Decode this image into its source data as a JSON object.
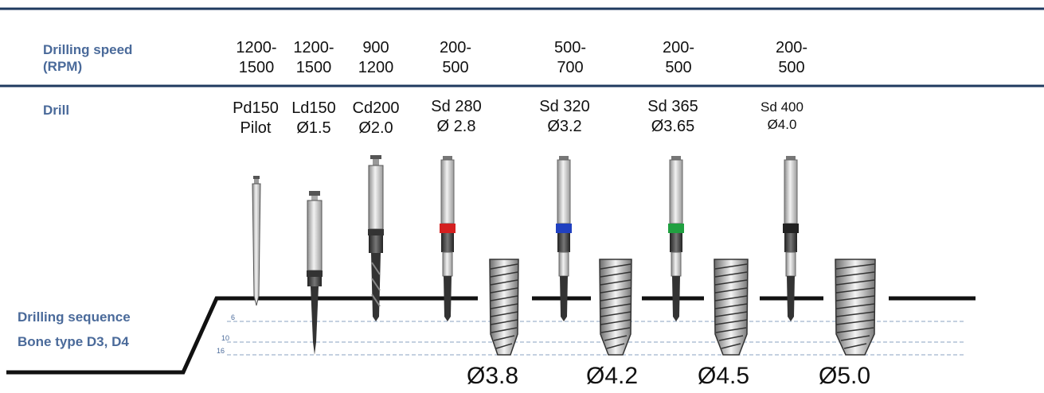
{
  "labels": {
    "drilling_speed": [
      "Drilling speed",
      "(RPM)"
    ],
    "drill": "Drill",
    "sequence": [
      "Drilling sequence",
      "Bone type D3, D4"
    ]
  },
  "speeds": [
    [
      "1200-",
      "1500"
    ],
    [
      "1200-",
      "1500"
    ],
    [
      "900",
      "1200"
    ],
    [
      "200-",
      "500"
    ],
    [
      "500-",
      "700"
    ],
    [
      "200-",
      "500"
    ],
    [
      "200-",
      "500"
    ]
  ],
  "drills": [
    [
      "Pd150",
      "Pilot"
    ],
    [
      "Ld150",
      "Ø1.5"
    ],
    [
      "Cd200",
      "Ø2.0"
    ],
    [
      "Sd 280",
      "Ø 2.8"
    ],
    [
      "Sd 320",
      "Ø3.2"
    ],
    [
      "Sd 365",
      "Ø3.65"
    ],
    [
      "Sd 400",
      "Ø4.0"
    ]
  ],
  "depths": [
    "6",
    "10",
    "16"
  ],
  "implant_diameters": [
    "Ø3.8",
    "Ø4.2",
    "Ø4.5",
    "Ø5.0"
  ],
  "colors": {
    "label_blue": "#4a6a9a",
    "rule_navy": "#1f3a5f",
    "ring_colors": [
      "#d42020",
      "#2040c0",
      "#20a040",
      "#222222"
    ]
  }
}
